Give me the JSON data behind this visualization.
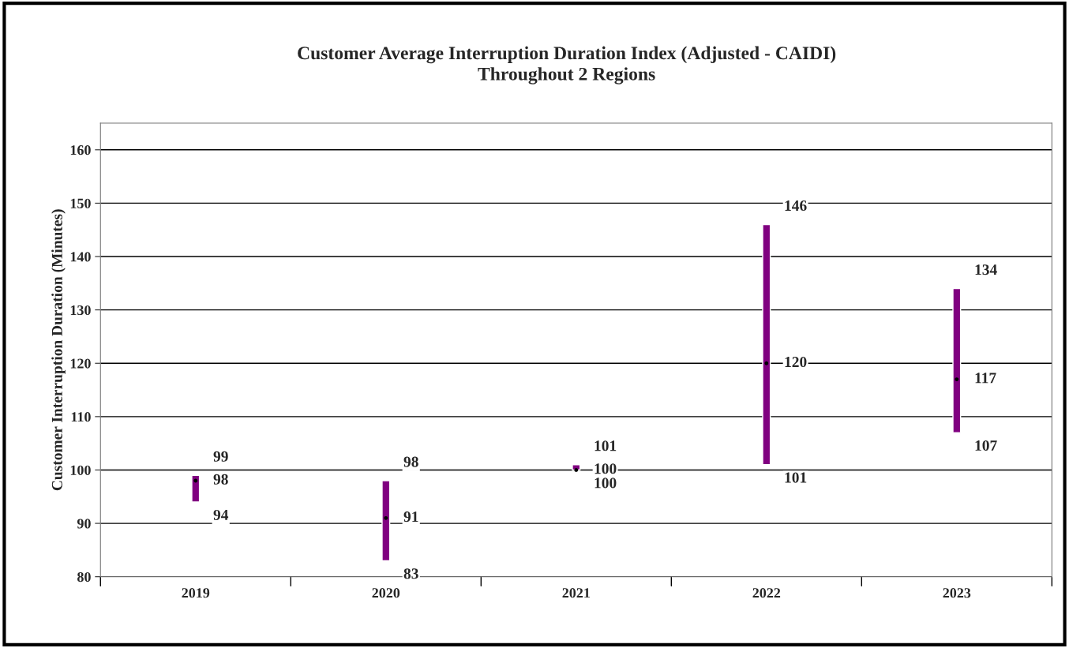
{
  "chart_data": {
    "type": "bar",
    "title": "Customer Average Interruption Duration Index (Adjusted - CAIDI)\nThroughout 2 Regions",
    "ylabel": "Customer Interruption Duration (Minutes)",
    "categories": [
      "2019",
      "2020",
      "2021",
      "2022",
      "2023"
    ],
    "series": [
      {
        "color": "#800080",
        "base": [
          94,
          83,
          100,
          101,
          107
        ],
        "values": [
          5,
          15,
          1,
          45,
          27
        ]
      },
      {
        "type": "scatter",
        "color": "#000000",
        "values": [
          98,
          91,
          100,
          120,
          117
        ],
        "value_labels": [
          "98",
          "91",
          "100",
          "120",
          "117"
        ]
      }
    ],
    "annotations": [
      {
        "text": "99",
        "x": "2019",
        "y": 99
      },
      {
        "text": "94",
        "x": "2019",
        "y": 94
      },
      {
        "text": "98",
        "x": "2020",
        "y": 98
      },
      {
        "text": "83",
        "x": "2020",
        "y": 83
      },
      {
        "text": "101",
        "x": "2021",
        "y": 101
      },
      {
        "text": "100",
        "x": "2021",
        "y": 100
      },
      {
        "text": "146",
        "x": "2022",
        "y": 146
      },
      {
        "text": "101",
        "x": "2022",
        "y": 101
      },
      {
        "text": "134",
        "x": "2023",
        "y": 134
      },
      {
        "text": "107",
        "x": "2023",
        "y": 107
      }
    ],
    "ylim": [
      80,
      165
    ],
    "yticks": [
      80,
      90,
      100,
      110,
      120,
      130,
      140,
      150,
      160
    ],
    "grid": "y",
    "marker": "circle"
  }
}
